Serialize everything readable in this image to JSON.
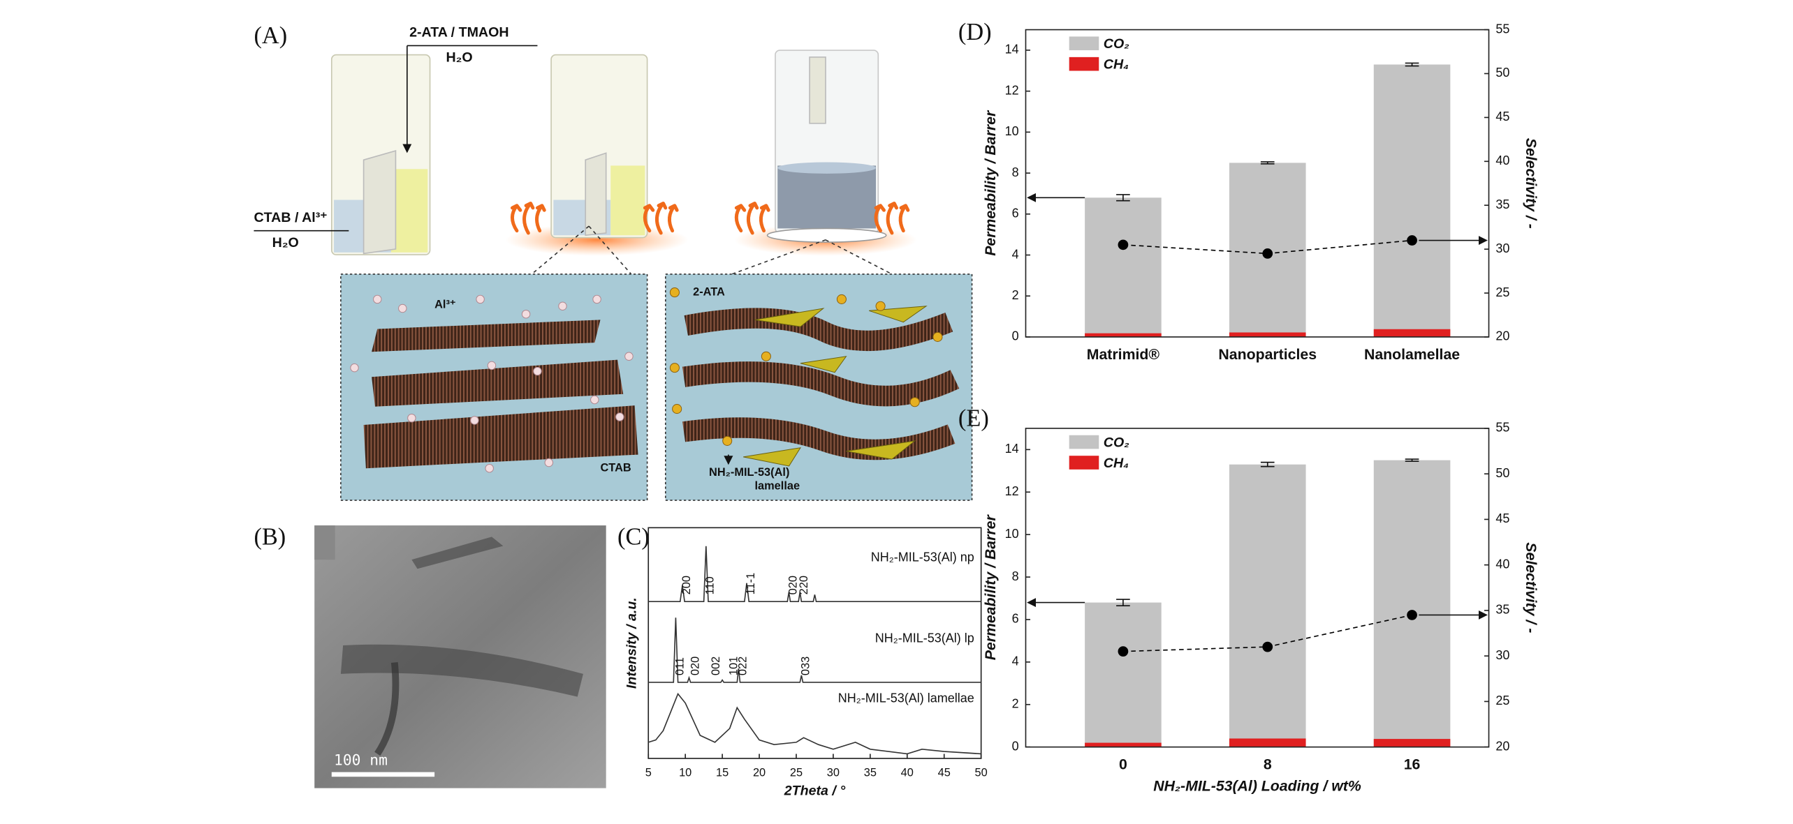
{
  "panels": {
    "A": {
      "label": "(A)",
      "reagent_top": "2-ATA / TMAOH",
      "solvent_top": "H₂O",
      "reagent_left": "CTAB / Al³⁺",
      "solvent_left": "H₂O",
      "ion": "Al³⁺",
      "surfactant": "CTAB",
      "linker": "2-ATA",
      "product": "NH₂-MIL-53(Al)",
      "product_form": "lamellae"
    },
    "B": {
      "label": "(B)",
      "scale_bar": "100 nm"
    }
  },
  "chart_data": [
    {
      "type": "line",
      "label": "(C)",
      "xlabel": "2Theta / °",
      "ylabel": "Intensity / a.u.",
      "xlim": [
        5,
        50
      ],
      "xticks": [
        5,
        10,
        15,
        20,
        25,
        30,
        35,
        40,
        45,
        50
      ],
      "ylim": [
        0,
        100
      ],
      "series": [
        {
          "name": "NH₂-MIL-53(Al) np",
          "color": "#333333",
          "x": [
            5,
            9.3,
            9.6,
            9.9,
            12.5,
            12.8,
            13.1,
            18.0,
            18.3,
            18.6,
            23.8,
            24.0,
            24.2,
            25.3,
            25.5,
            25.7,
            27.3,
            27.5,
            27.7,
            50
          ],
          "values": [
            68,
            68,
            75,
            68,
            68,
            92,
            68,
            68,
            76,
            68,
            68,
            72,
            68,
            68,
            72,
            68,
            68,
            71,
            68,
            68
          ],
          "peaks": [
            {
              "x": 9.6,
              "label": "200"
            },
            {
              "x": 12.8,
              "label": "110"
            },
            {
              "x": 18.3,
              "label": "11-1"
            },
            {
              "x": 24.0,
              "label": "020"
            },
            {
              "x": 25.5,
              "label": "220"
            }
          ]
        },
        {
          "name": "NH₂-MIL-53(Al) lp",
          "color": "#333333",
          "x": [
            5,
            8.4,
            8.7,
            9.0,
            10.3,
            10.5,
            10.7,
            14.8,
            15,
            15.2,
            17,
            17.2,
            17.4,
            25.5,
            25.7,
            25.9,
            50
          ],
          "values": [
            33,
            33,
            61,
            33,
            33,
            35,
            33,
            33,
            34,
            33,
            33,
            39,
            33,
            33,
            36,
            33,
            33
          ],
          "peaks": [
            {
              "x": 8.7,
              "label": "011"
            },
            {
              "x": 10.8,
              "label": "020"
            },
            {
              "x": 13.6,
              "label": "002"
            },
            {
              "x": 16.0,
              "label": "101"
            },
            {
              "x": 17.2,
              "label": "022"
            },
            {
              "x": 25.7,
              "label": "033"
            }
          ]
        },
        {
          "name": "NH₂-MIL-53(Al) lamellae",
          "color": "#333333",
          "x": [
            5,
            6,
            7,
            8,
            9,
            10,
            11,
            12,
            14,
            16,
            17,
            18,
            20,
            22,
            25,
            26,
            28,
            30,
            33,
            35,
            40,
            42,
            45,
            50
          ],
          "values": [
            7,
            8,
            12,
            20,
            28,
            24,
            17,
            10,
            7,
            13,
            22,
            17,
            8,
            6,
            7,
            9,
            6,
            4,
            7,
            4,
            2,
            4,
            3,
            2
          ]
        }
      ]
    },
    {
      "type": "bar",
      "label": "(D)",
      "categories": [
        "Matrimid®",
        "Nanoparticles",
        "Nanolamellae"
      ],
      "ylabel": "Permeability / Barrer",
      "y2label": "Selectivity / -",
      "ylim": [
        0,
        15
      ],
      "yticks": [
        0,
        2,
        4,
        6,
        8,
        10,
        12,
        14
      ],
      "y2lim": [
        20,
        55
      ],
      "y2ticks": [
        20,
        25,
        30,
        35,
        40,
        45,
        50,
        55
      ],
      "legend": "upper left",
      "series": [
        {
          "name": "CO₂",
          "color": "#c3c3c3",
          "values": [
            6.8,
            8.5,
            13.3
          ],
          "errors": [
            0.15,
            0.05,
            0.07
          ]
        },
        {
          "name": "CH₄",
          "color": "#e02020",
          "values": [
            0.18,
            0.22,
            0.38
          ]
        },
        {
          "type": "line",
          "axis": "y2",
          "color": "#000000",
          "values": [
            30.5,
            29.5,
            31
          ]
        }
      ]
    },
    {
      "type": "bar",
      "label": "(E)",
      "categories": [
        "0",
        "8",
        "16"
      ],
      "xlabel": "NH₂-MIL-53(Al) Loading / wt%",
      "ylabel": "Permeability / Barrer",
      "y2label": "Selectivity / -",
      "ylim": [
        0,
        15
      ],
      "yticks": [
        0,
        2,
        4,
        6,
        8,
        10,
        12,
        14
      ],
      "y2lim": [
        20,
        55
      ],
      "y2ticks": [
        20,
        25,
        30,
        35,
        40,
        45,
        50,
        55
      ],
      "legend": "upper left",
      "series": [
        {
          "name": "CO₂",
          "color": "#c3c3c3",
          "values": [
            6.8,
            13.3,
            13.5
          ],
          "errors": [
            0.15,
            0.1,
            0.05
          ]
        },
        {
          "name": "CH₄",
          "color": "#e02020",
          "values": [
            0.2,
            0.4,
            0.38
          ]
        },
        {
          "type": "line",
          "axis": "y2",
          "color": "#000000",
          "values": [
            30.5,
            31,
            34.5
          ]
        }
      ]
    }
  ]
}
